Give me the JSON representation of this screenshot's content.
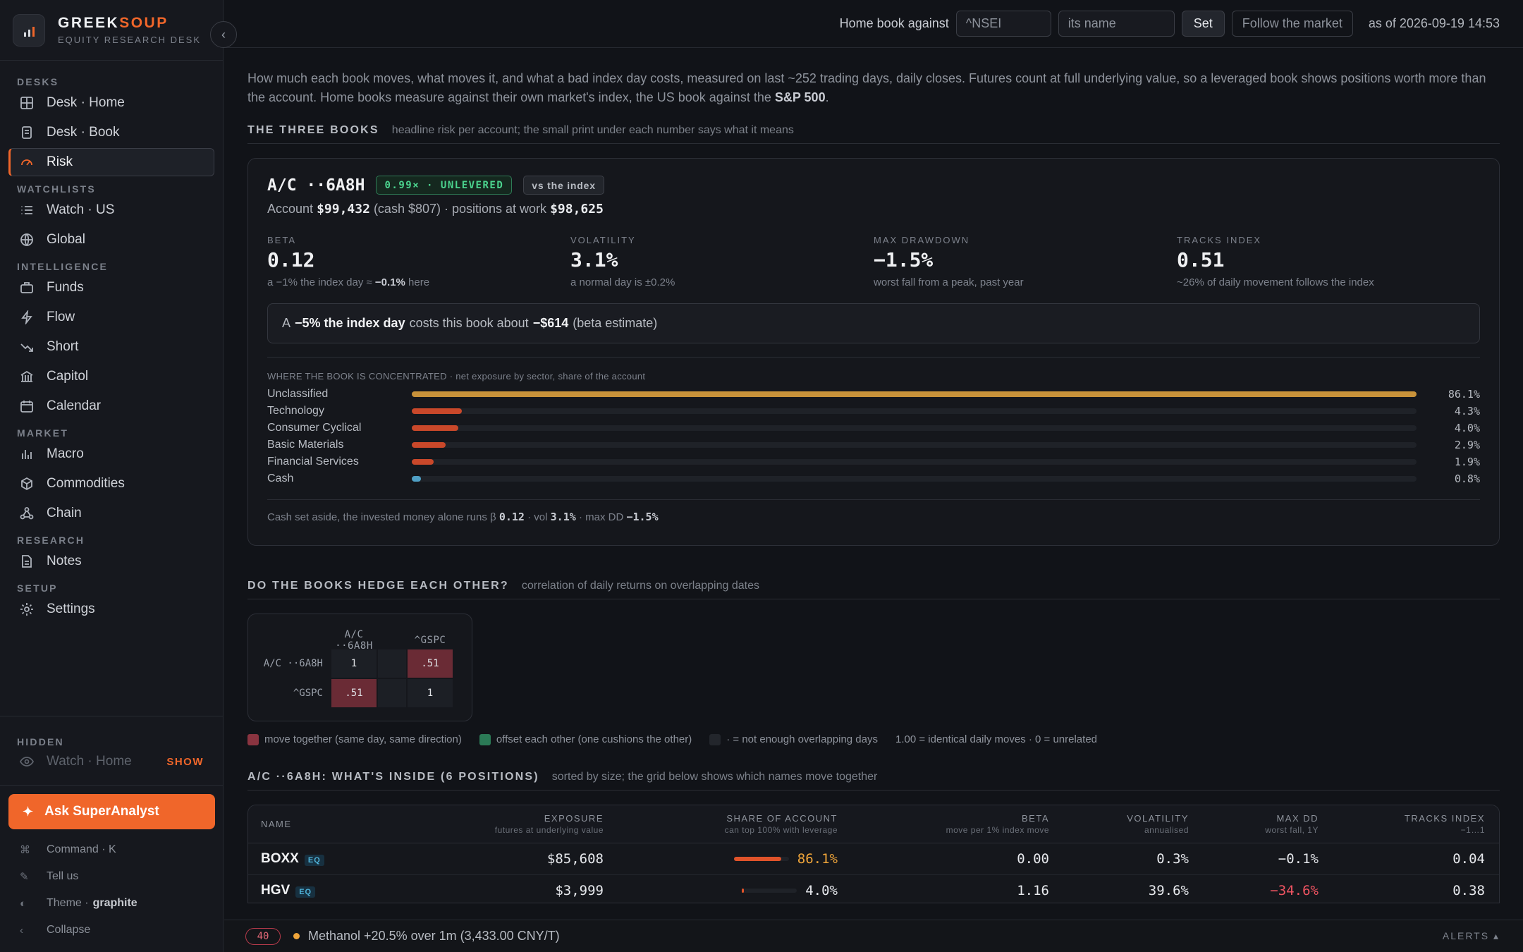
{
  "brand": {
    "name_a": "GREEK",
    "name_b": "SOUP",
    "subtitle": "EQUITY RESEARCH DESK"
  },
  "nav": {
    "desks_title": "DESKS",
    "desks": [
      {
        "label": "Desk · Home",
        "icon": "grid-icon"
      },
      {
        "label": "Desk · Book",
        "icon": "book-icon"
      },
      {
        "label": "Risk",
        "icon": "gauge-icon",
        "active": true
      }
    ],
    "watchlists_title": "WATCHLISTS",
    "watchlists": [
      {
        "label": "Watch · US",
        "icon": "list-icon"
      },
      {
        "label": "Global",
        "icon": "globe-icon"
      }
    ],
    "intelligence_title": "INTELLIGENCE",
    "intelligence": [
      {
        "label": "Funds",
        "icon": "briefcase-icon"
      },
      {
        "label": "Flow",
        "icon": "bolt-icon"
      },
      {
        "label": "Short",
        "icon": "trend-down-icon"
      },
      {
        "label": "Capitol",
        "icon": "capitol-icon"
      },
      {
        "label": "Calendar",
        "icon": "calendar-icon"
      }
    ],
    "market_title": "MARKET",
    "market": [
      {
        "label": "Macro",
        "icon": "bar-chart-icon"
      },
      {
        "label": "Commodities",
        "icon": "cube-icon"
      },
      {
        "label": "Chain",
        "icon": "chain-icon"
      }
    ],
    "research_title": "RESEARCH",
    "research": [
      {
        "label": "Notes",
        "icon": "note-icon"
      }
    ],
    "setup_title": "SETUP",
    "setup": [
      {
        "label": "Settings",
        "icon": "gear-icon"
      }
    ]
  },
  "hidden": {
    "title": "HIDDEN",
    "item": "Watch · Home",
    "show_label": "SHOW"
  },
  "bottom": {
    "ask_label": "Ask SuperAnalyst",
    "command_label": "Command · K",
    "tell_label": "Tell us",
    "theme_label": "Theme ·",
    "theme_value": "graphite",
    "collapse_label": "Collapse"
  },
  "topbar": {
    "home_label": "Home book against",
    "ticker_placeholder": "^NSEI",
    "name_placeholder": "its name",
    "set_label": "Set",
    "follow_label": "Follow the market",
    "asof": "as of 2026-09-19 14:53"
  },
  "intro": {
    "text": "How much each book moves, what moves it, and what a bad index day costs, measured on last ~252 trading days, daily closes. Futures count at full underlying value, so a leveraged book shows positions worth more than the account. Home books measure against their own market's index, the US book against the",
    "bold": "S&P 500",
    "end": "."
  },
  "three_books": {
    "title": "THE THREE BOOKS",
    "note": "headline risk per account; the small print under each number says what it means"
  },
  "book": {
    "name": "A/C ··6A8H",
    "lever_chip": "0.99× · UNLEVERED",
    "index_chip": "vs the index",
    "acct_prefix": "Account",
    "account_value": "$99,432",
    "cash_part": "(cash $807) · positions at work",
    "positions_value": "$98,625",
    "metrics": [
      {
        "label": "BETA",
        "value": "0.12",
        "note_a": "a −1% the index day ≈",
        "note_b": "−0.1%",
        "note_c": "here"
      },
      {
        "label": "VOLATILITY",
        "value": "3.1%",
        "note_a": "a normal day is ±0.2%",
        "note_b": "",
        "note_c": ""
      },
      {
        "label": "MAX DRAWDOWN",
        "value": "−1.5%",
        "note_a": "worst fall from a peak, past year",
        "note_b": "",
        "note_c": ""
      },
      {
        "label": "TRACKS INDEX",
        "value": "0.51",
        "note_a": "~26% of daily movement follows the index",
        "note_b": "",
        "note_c": ""
      }
    ],
    "scenario": {
      "a": "A",
      "b": "−5% the index day",
      "c": "costs this book about",
      "d": "−$614",
      "e": "(beta estimate)"
    },
    "conc_title": "WHERE THE BOOK IS CONCENTRATED",
    "conc_sub": " · net exposure by sector, share of the account",
    "sectors": [
      {
        "name": "Unclassified",
        "share": 86.1,
        "label": "86.1%",
        "color": "#c8923a"
      },
      {
        "name": "Technology",
        "share": 4.3,
        "label": "4.3%",
        "color": "#c9482a"
      },
      {
        "name": "Consumer Cyclical",
        "share": 4.0,
        "label": "4.0%",
        "color": "#c9482a"
      },
      {
        "name": "Basic Materials",
        "share": 2.9,
        "label": "2.9%",
        "color": "#c9482a"
      },
      {
        "name": "Financial Services",
        "share": 1.9,
        "label": "1.9%",
        "color": "#c9482a"
      },
      {
        "name": "Cash",
        "share": 0.8,
        "label": "0.8%",
        "color": "#4f9fc4"
      }
    ],
    "cash_note": {
      "a": "Cash set aside, the invested money alone runs β",
      "beta": "0.12",
      "b": "· vol",
      "vol": "3.1%",
      "c": "· max DD",
      "dd": "−1.5%"
    }
  },
  "hedge": {
    "title": "DO THE BOOKS HEDGE EACH OTHER?",
    "note": "correlation of daily returns on overlapping dates",
    "cols": [
      "A/C ··6A8H",
      "^GSPC"
    ],
    "rows": [
      {
        "label": "A/C ··6A8H",
        "cells": [
          "1",
          ".51"
        ]
      },
      {
        "label": "^GSPC",
        "cells": [
          ".51",
          "1"
        ]
      }
    ],
    "legend": {
      "together": "move together (same day, same direction)",
      "offset": "offset each other (one cushions the other)",
      "na": "· = not enough overlapping days",
      "scale": "1.00 = identical daily moves · 0 = unrelated"
    },
    "colors": {
      "together": "#8a3440",
      "offset": "#2b7a56",
      "na": "#23262c"
    }
  },
  "positions": {
    "title": "A/C ··6A8H: WHAT'S INSIDE (6 POSITIONS)",
    "note": "sorted by size; the grid below shows which names move together",
    "headers": [
      {
        "label": "NAME",
        "sub": ""
      },
      {
        "label": "EXPOSURE",
        "sub": "futures at underlying value"
      },
      {
        "label": "SHARE OF ACCOUNT",
        "sub": "can top 100% with leverage"
      },
      {
        "label": "BETA",
        "sub": "move per 1% index move"
      },
      {
        "label": "VOLATILITY",
        "sub": "annualised"
      },
      {
        "label": "MAX DD",
        "sub": "worst fall, 1Y"
      },
      {
        "label": "TRACKS INDEX",
        "sub": "−1…1"
      }
    ],
    "rows": [
      {
        "ticker": "BOXX",
        "badge": "EQ",
        "exposure": "$85,608",
        "share": 86.1,
        "share_label": "86.1%",
        "share_color": "#f0a53a",
        "beta": "0.00",
        "vol": "0.3%",
        "dd": "−0.1%",
        "dd_color": "#e6e8ec",
        "tracks": "0.04"
      },
      {
        "ticker": "HGV",
        "badge": "EQ",
        "exposure": "$3,999",
        "share": 4.0,
        "share_label": "4.0%",
        "share_color": "#e6e8ec",
        "beta": "1.16",
        "vol": "39.6%",
        "dd": "−34.6%",
        "dd_color": "#ef5462",
        "tracks": "0.38"
      }
    ]
  },
  "status": {
    "count": "40",
    "alert": "Methanol +20.5% over 1m (3,433.00 CNY/T)",
    "alerts_label": "ALERTS ▴"
  }
}
